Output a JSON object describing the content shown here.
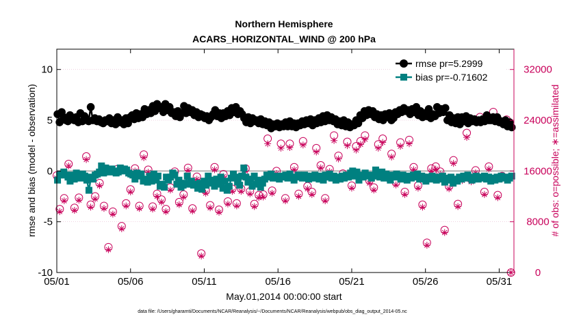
{
  "chart_data": {
    "type": "line",
    "title": "Northern Hemisphere",
    "subtitle": "ACARS_HORIZONTAL_WIND @ 200 hPa",
    "xlabel": "May.01,2014 00:00:00 start",
    "ylabel": "rmse and bias (model - observation)",
    "ylabel_right": "# of obs: o=possible; ∗=assimilated",
    "footnote": "data file: /Users/gharamti/Documents/NCAR/Reanalysis/~/Documents/NCAR/Reanalysis/webpub/obs_diag_output_2014-05.nc",
    "xlim": [
      1,
      32
    ],
    "ylim": [
      -10,
      12
    ],
    "ylim_right": [
      0,
      35200
    ],
    "x_ticks": [
      1,
      6,
      11,
      16,
      21,
      26,
      31
    ],
    "x_tick_labels": [
      "05/01",
      "05/06",
      "05/11",
      "05/16",
      "05/21",
      "05/26",
      "05/31"
    ],
    "y_ticks": [
      -10,
      -5,
      0,
      5,
      10
    ],
    "y_tick_labels": [
      "-10",
      "-5",
      "0",
      "5",
      "10"
    ],
    "y_right_ticks": [
      0,
      8000,
      16000,
      24000,
      32000
    ],
    "y_right_tick_labels": [
      "0",
      "8000",
      "16000",
      "24000",
      "32000"
    ],
    "colors": {
      "rmse": "#000000",
      "bias": "#008080",
      "obs": "#c8005a",
      "zero_line": "#b4b4b4"
    },
    "legend_position": "top-right",
    "series": [
      {
        "name": "rmse pr=5.2999",
        "marker": "circle",
        "axis": "left",
        "values": [
          5.6,
          4.8,
          5.8,
          5.3,
          5.0,
          4.9,
          5.5,
          5.2,
          5.0,
          5.3,
          4.8,
          5.7,
          4.9,
          5.4,
          5.1,
          4.9,
          6.3,
          5.0,
          5.2,
          4.9,
          5.1,
          4.8,
          4.7,
          5.0,
          4.9,
          5.2,
          4.7,
          5.0,
          4.6,
          5.3,
          4.8,
          5.0,
          4.6,
          5.2,
          4.7,
          5.3,
          5.5,
          5.1,
          5.7,
          5.2,
          5.6,
          5.3,
          6.1,
          5.6,
          6.0,
          5.7,
          6.4,
          5.9,
          6.6,
          6.2,
          6.3,
          5.8,
          6.6,
          6.0,
          6.3,
          5.7,
          5.8,
          5.4,
          5.9,
          5.3,
          5.7,
          6.4,
          5.7,
          6.2,
          5.8,
          6.0,
          5.5,
          5.8,
          5.3,
          5.6,
          5.5,
          5.2,
          5.4,
          5.0,
          5.3,
          5.6,
          6.0,
          5.4,
          5.7,
          5.2,
          5.7,
          5.4,
          5.9,
          5.5,
          6.2,
          5.8,
          6.3,
          5.6,
          5.9,
          5.6,
          5.2,
          4.8,
          5.3,
          4.7,
          5.2,
          4.9,
          5.0,
          4.7,
          5.1,
          4.6,
          4.9,
          4.5,
          4.8,
          4.2,
          4.6,
          4.4,
          4.7,
          4.3,
          4.6,
          4.4,
          4.8,
          4.4,
          4.9,
          4.4,
          4.7,
          4.3,
          4.7,
          4.5,
          4.9,
          4.6,
          5.0,
          4.7,
          5.1,
          4.5,
          5.0,
          4.7,
          5.2,
          4.8,
          5.4,
          4.9,
          5.5,
          5.0,
          5.3,
          4.9,
          5.1,
          4.6,
          4.9,
          4.5,
          5.0,
          4.4,
          4.8,
          4.3,
          4.6,
          4.5,
          5.0,
          4.7,
          5.5,
          5.2,
          5.9,
          5.5,
          6.0,
          5.6,
          5.9,
          5.3,
          5.6,
          5.1,
          5.5,
          5.0,
          5.6,
          5.3,
          5.7,
          5.0,
          5.2,
          5.8,
          5.6,
          6.0,
          5.8,
          6.2,
          5.9,
          6.0,
          5.6,
          6.1,
          5.8,
          6.3,
          5.5,
          5.9,
          5.3,
          5.7,
          5.4,
          6.1,
          5.2,
          5.6,
          5.4,
          6.3,
          5.7,
          6.1,
          5.8,
          6.2,
          5.0,
          5.5,
          4.8,
          5.2,
          4.7,
          5.3,
          4.6,
          5.3,
          4.9,
          5.4,
          4.7,
          5.2,
          4.9,
          5.1,
          4.8,
          5.0,
          4.8,
          5.1,
          4.9,
          5.5,
          5.0,
          5.0,
          5.3,
          4.9,
          5.3,
          4.8,
          4.9,
          4.6,
          5.0,
          4.4,
          4.8,
          4.3
        ]
      },
      {
        "name": "bias pr=-0.71602",
        "marker": "square",
        "axis": "left",
        "values": [
          -0.9,
          -0.4,
          -0.3,
          -0.1,
          -0.4,
          -0.6,
          -1.0,
          -0.4,
          -0.8,
          -0.2,
          -0.5,
          -0.7,
          -0.3,
          -0.5,
          -0.9,
          -1.9,
          -0.6,
          -0.8,
          -0.4,
          -0.3,
          -0.1,
          0.5,
          -0.2,
          0.3,
          0.1,
          -0.1,
          0.2,
          0.0,
          -0.2,
          -0.1,
          0.3,
          0.0,
          0.2,
          0.1,
          -0.2,
          -0.3,
          -0.4,
          -0.8,
          -0.2,
          -0.5,
          -0.3,
          -1.0,
          -0.8,
          -1.1,
          -0.5,
          -1.0,
          -0.3,
          -0.9,
          -0.5,
          -1.5,
          -1.3,
          -1.6,
          -0.6,
          -0.9,
          -0.6,
          -0.2,
          -0.4,
          -1.3,
          -0.9,
          -1.6,
          -1.4,
          -1.2,
          -0.5,
          -1.3,
          -1.0,
          -1.4,
          -1.3,
          -1.7,
          -1.2,
          -1.8,
          -1.0,
          -1.4,
          -0.5,
          -1.2,
          -0.9,
          -1.5,
          -0.8,
          -1.3,
          -0.6,
          -1.7,
          -1.0,
          -1.9,
          -1.5,
          -0.7,
          -0.3,
          -0.6,
          -1.1,
          -1.4,
          -0.5,
          0.3,
          -0.6,
          -1.1,
          -0.8,
          -1.5,
          -0.5,
          -1.3,
          -0.9,
          -1.6,
          -1.2,
          -0.8,
          -0.4,
          -0.6,
          -0.3,
          -0.7,
          -0.5,
          -0.6,
          -0.8,
          -0.5,
          -0.6,
          -0.4,
          -0.7,
          -0.3,
          -0.6,
          -0.9,
          -0.6,
          -0.4,
          -0.5,
          -0.7,
          -0.4,
          -0.5,
          -0.8,
          -0.5,
          -0.7,
          -0.4,
          -0.6,
          -0.8,
          -0.5,
          -0.9,
          -0.4,
          -0.6,
          -0.3,
          -0.7,
          -0.5,
          -0.9,
          -0.6,
          -0.8,
          -0.5,
          -0.7,
          -0.4,
          -0.6,
          -0.2,
          0.0,
          -0.5,
          -0.1,
          -0.9,
          -0.4,
          -0.6,
          -0.2,
          -0.5,
          -0.4,
          -0.7,
          -0.5,
          0.1,
          -0.3,
          -0.6,
          -0.1,
          -0.7,
          -0.3,
          -0.5,
          -0.9,
          -0.4,
          -0.6,
          -0.3,
          -0.5,
          -0.8,
          -0.4,
          -0.6,
          -0.9,
          -0.5,
          -0.7,
          -0.4,
          -0.6,
          -0.3,
          -0.8,
          -0.5,
          -0.6,
          -1.0,
          -0.6,
          -0.8,
          -0.5,
          -0.7,
          -0.9,
          -0.6,
          -0.8,
          -0.5,
          -1.1,
          -0.7,
          -0.9,
          -0.6,
          -1.2,
          -0.8,
          -1.0,
          -0.6,
          -0.8,
          -0.5,
          -0.7,
          -0.4,
          -0.6,
          -0.9,
          -0.7,
          -0.5,
          -0.8,
          -0.6,
          -0.7,
          -0.5,
          -0.8,
          -0.6,
          -1.0,
          -0.7,
          -0.9,
          -0.6,
          -0.8,
          -0.5,
          -0.7,
          -0.6,
          -0.9,
          -0.7,
          -0.5
        ]
      },
      {
        "name": "possible obs",
        "marker": "open-circle",
        "axis": "right",
        "x": [
          1.0,
          1.2,
          1.5,
          1.8,
          2.2,
          2.5,
          3.0,
          3.3,
          3.6,
          3.9,
          4.2,
          4.5,
          4.8,
          5.1,
          5.4,
          5.7,
          6.0,
          6.3,
          6.6,
          6.9,
          7.2,
          7.5,
          7.8,
          8.1,
          8.4,
          8.7,
          9.0,
          9.3,
          9.6,
          9.9,
          10.2,
          10.5,
          10.8,
          11.1,
          11.4,
          11.7,
          12.0,
          12.3,
          12.6,
          12.9,
          13.2,
          13.5,
          13.8,
          14.1,
          14.4,
          14.7,
          15.0,
          15.3,
          15.6,
          15.9,
          16.2,
          16.5,
          16.8,
          17.1,
          17.4,
          17.7,
          18.0,
          18.3,
          18.6,
          18.9,
          19.2,
          19.5,
          19.8,
          20.1,
          20.4,
          20.7,
          21.0,
          21.3,
          21.6,
          21.9,
          22.2,
          22.5,
          22.8,
          23.1,
          23.4,
          23.7,
          24.0,
          24.3,
          24.6,
          24.9,
          25.2,
          25.5,
          25.8,
          26.1,
          26.4,
          26.7,
          27.0,
          27.3,
          27.6,
          27.9,
          28.2,
          28.5,
          28.8,
          29.1,
          29.4,
          29.7,
          30.0,
          30.3,
          30.6,
          30.9,
          31.2,
          31.5,
          31.8
        ],
        "values": [
          15300,
          10000,
          11700,
          17100,
          10200,
          11800,
          18300,
          10700,
          12000,
          14100,
          10500,
          4000,
          9600,
          16300,
          7300,
          10900,
          13100,
          16400,
          10500,
          18600,
          16200,
          10400,
          12400,
          11500,
          10000,
          13400,
          15900,
          11100,
          12300,
          16500,
          10100,
          15100,
          3000,
          12900,
          10600,
          16600,
          9900,
          15500,
          11200,
          13200,
          10900,
          13200,
          16400,
          12800,
          10800,
          12200,
          12300,
          21100,
          12900,
          16000,
          20300,
          11700,
          20300,
          16600,
          12400,
          20700,
          13600,
          12700,
          19600,
          16900,
          11700,
          16300,
          21600,
          18400,
          15600,
          20600,
          13700,
          19900,
          20700,
          21600,
          14500,
          13400,
          20200,
          21100,
          15200,
          18700,
          14200,
          20500,
          12700,
          20900,
          16600,
          13700,
          10700,
          4700,
          16400,
          16700,
          15900,
          6700,
          13600,
          17700,
          10800,
          14900,
          22000,
          14700,
          16100,
          24500,
          12700,
          16700,
          25300,
          12200,
          15200,
          24100,
          0
        ]
      },
      {
        "name": "assimilated obs",
        "marker": "asterisk",
        "axis": "right",
        "x": [
          1.0,
          1.2,
          1.5,
          1.8,
          2.2,
          2.5,
          3.0,
          3.3,
          3.6,
          3.9,
          4.2,
          4.5,
          4.8,
          5.1,
          5.4,
          5.7,
          6.0,
          6.3,
          6.6,
          6.9,
          7.2,
          7.5,
          7.8,
          8.1,
          8.4,
          8.7,
          9.0,
          9.3,
          9.6,
          9.9,
          10.2,
          10.5,
          10.8,
          11.1,
          11.4,
          11.7,
          12.0,
          12.3,
          12.6,
          12.9,
          13.2,
          13.5,
          13.8,
          14.1,
          14.4,
          14.7,
          15.0,
          15.3,
          15.6,
          15.9,
          16.2,
          16.5,
          16.8,
          17.1,
          17.4,
          17.7,
          18.0,
          18.3,
          18.6,
          18.9,
          19.2,
          19.5,
          19.8,
          20.1,
          20.4,
          20.7,
          21.0,
          21.3,
          21.6,
          21.9,
          22.2,
          22.5,
          22.8,
          23.1,
          23.4,
          23.7,
          24.0,
          24.3,
          24.6,
          24.9,
          25.2,
          25.5,
          25.8,
          26.1,
          26.4,
          26.7,
          27.0,
          27.3,
          27.6,
          27.9,
          28.2,
          28.5,
          28.8,
          29.1,
          29.4,
          29.7,
          30.0,
          30.3,
          30.6,
          30.9,
          31.2,
          31.5,
          31.8
        ],
        "values": [
          14900,
          9600,
          11300,
          16800,
          9800,
          11400,
          17800,
          10300,
          11600,
          13700,
          10100,
          3600,
          9200,
          15800,
          6900,
          10500,
          12700,
          16000,
          10100,
          18100,
          15800,
          10000,
          12000,
          11100,
          9600,
          13000,
          15400,
          10700,
          11900,
          16100,
          9700,
          14700,
          2600,
          12500,
          10200,
          16200,
          9500,
          15100,
          10800,
          12800,
          10500,
          12800,
          16000,
          12400,
          10400,
          11800,
          11900,
          20300,
          12500,
          15600,
          19600,
          11300,
          19700,
          16200,
          12000,
          20100,
          13200,
          12300,
          19000,
          16500,
          11300,
          15900,
          20800,
          17900,
          15200,
          20000,
          13300,
          19300,
          20200,
          21000,
          14100,
          13000,
          19600,
          20500,
          14800,
          18200,
          13800,
          19900,
          12300,
          20300,
          16200,
          13300,
          10300,
          4300,
          16000,
          16300,
          15500,
          6300,
          13200,
          17200,
          10400,
          14500,
          21300,
          14300,
          15700,
          23800,
          12300,
          16300,
          24600,
          11800,
          14800,
          23500,
          0
        ]
      }
    ],
    "legend": [
      {
        "label": "rmse pr=5.2999",
        "series": "rmse"
      },
      {
        "label": "bias pr=-0.71602",
        "series": "bias"
      }
    ]
  }
}
